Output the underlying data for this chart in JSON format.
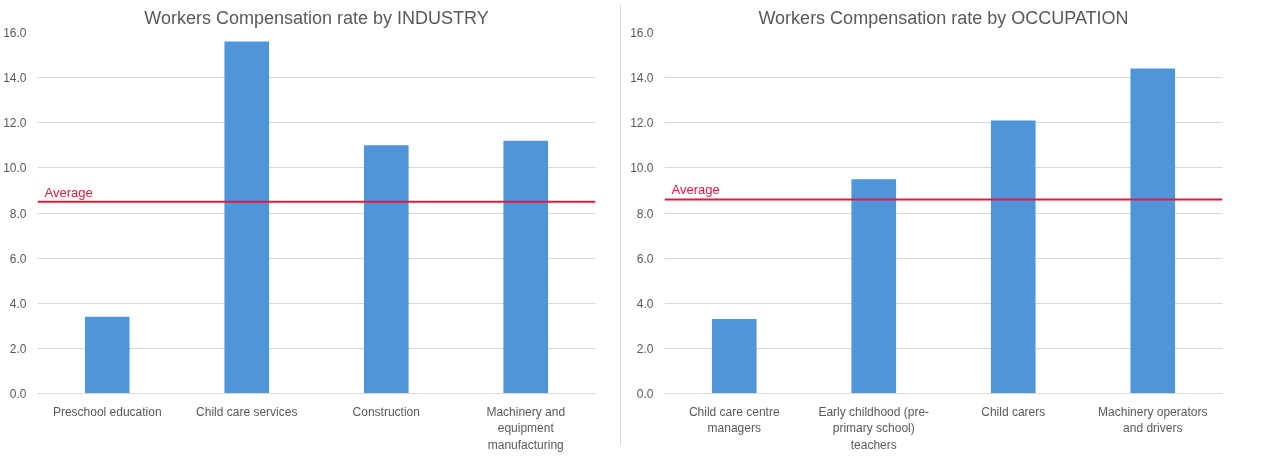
{
  "chart_data": [
    {
      "type": "bar",
      "title": "Workers Compensation rate by INDUSTRY",
      "categories": [
        "Preschool education",
        "Child care services",
        "Construction",
        "Machinery and equipment manufacturing"
      ],
      "series": [
        {
          "color": "#4e95d9",
          "values": [
            3.4,
            15.6,
            11.0,
            11.2
          ]
        }
      ],
      "ylim": [
        0,
        16
      ],
      "yticks": [
        {
          "value": 0,
          "label": "0.0"
        },
        {
          "value": 2,
          "label": "2.0"
        },
        {
          "value": 4,
          "label": "4.0"
        },
        {
          "value": 6,
          "label": "6.0"
        },
        {
          "value": 8,
          "label": "8.0"
        },
        {
          "value": 10,
          "label": "10.0"
        },
        {
          "value": 12,
          "label": "12.0"
        },
        {
          "value": 14,
          "label": "14.0"
        },
        {
          "value": 16,
          "label": "16.0"
        }
      ],
      "grid": "y",
      "ref_lines": [
        {
          "axis": "y",
          "value": 8.5,
          "label": "Average",
          "color": "#e8183c"
        }
      ]
    },
    {
      "type": "bar",
      "title": "Workers Compensation rate by OCCUPATION",
      "categories": [
        "Child care centre managers",
        "Early childhood (pre-primary school) teachers",
        "Child carers",
        "Machinery operators and drivers"
      ],
      "series": [
        {
          "color": "#4e95d9",
          "values": [
            3.3,
            9.5,
            12.1,
            14.4
          ]
        }
      ],
      "ylim": [
        0,
        16
      ],
      "yticks": [
        {
          "value": 0,
          "label": "0.0"
        },
        {
          "value": 2,
          "label": "2.0"
        },
        {
          "value": 4,
          "label": "4.0"
        },
        {
          "value": 6,
          "label": "6.0"
        },
        {
          "value": 8,
          "label": "8.0"
        },
        {
          "value": 10,
          "label": "10.0"
        },
        {
          "value": 12,
          "label": "12.0"
        },
        {
          "value": 14,
          "label": "14.0"
        },
        {
          "value": 16,
          "label": "16.0"
        }
      ],
      "grid": "y",
      "ref_lines": [
        {
          "axis": "y",
          "value": 8.6,
          "label": "Average",
          "color": "#e8183c"
        }
      ]
    }
  ]
}
